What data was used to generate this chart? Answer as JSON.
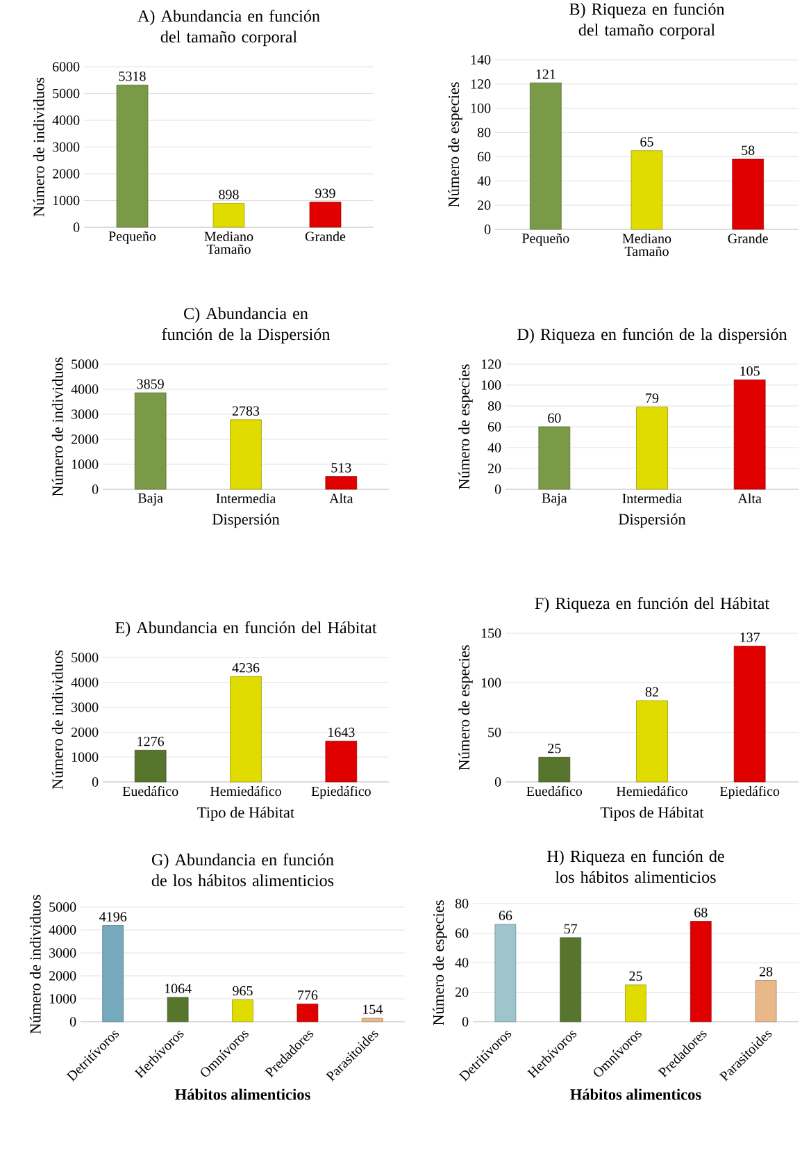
{
  "chart_data": [
    {
      "type": "bar",
      "title": "A) Abundancia en función del tamaño corporal",
      "ylabel": "Número de individuos",
      "categories": [
        "Pequeño",
        "Mediano Tamaño",
        "Grande"
      ],
      "values": [
        5318,
        898,
        939
      ],
      "colors": [
        "#7a9a48",
        "#e0dc00",
        "#e00000"
      ],
      "ylim": [
        0,
        6000
      ],
      "yticks": [
        0,
        1000,
        2000,
        3000,
        4000,
        5000,
        6000
      ],
      "grid": "y",
      "data_labels": true
    },
    {
      "type": "bar",
      "title": "B) Riqueza en función del tamaño corporal",
      "ylabel": "Número de especies",
      "categories": [
        "Pequeño",
        "Mediano Tamaño",
        "Grande"
      ],
      "values": [
        121,
        65,
        58
      ],
      "colors": [
        "#7a9a48",
        "#e0dc00",
        "#e00000"
      ],
      "ylim": [
        0,
        140
      ],
      "yticks": [
        0,
        20,
        40,
        60,
        80,
        100,
        120,
        140
      ],
      "grid": "y",
      "data_labels": true
    },
    {
      "type": "bar",
      "title": "C) Abundancia en función de la Dispersión",
      "ylabel": "Número de individuos",
      "xlabel": "Dispersión",
      "categories": [
        "Baja",
        "Intermedia",
        "Alta"
      ],
      "values": [
        3859,
        2783,
        513
      ],
      "colors": [
        "#7a9a48",
        "#e0dc00",
        "#e00000"
      ],
      "ylim": [
        0,
        5000
      ],
      "yticks": [
        0,
        1000,
        2000,
        3000,
        4000,
        5000
      ],
      "grid": "y",
      "data_labels": true
    },
    {
      "type": "bar",
      "title": "D) Riqueza en función de la dispersión",
      "ylabel": "Número de especies",
      "xlabel": "Dispersión",
      "categories": [
        "Baja",
        "Intermedia",
        "Alta"
      ],
      "values": [
        60,
        79,
        105
      ],
      "colors": [
        "#7a9a48",
        "#e0dc00",
        "#e00000"
      ],
      "ylim": [
        0,
        120
      ],
      "yticks": [
        0,
        20,
        40,
        60,
        80,
        100,
        120
      ],
      "grid": "y",
      "data_labels": true
    },
    {
      "type": "bar",
      "title": "E) Abundancia en función del Hábitat",
      "ylabel": "Número de individuos",
      "xlabel": "Tipo de Hábitat",
      "categories": [
        "Euedáfico",
        "Hemiedáfico",
        "Epiedáfico"
      ],
      "values": [
        1276,
        4236,
        1643
      ],
      "colors": [
        "#58752e",
        "#e0dc00",
        "#e00000"
      ],
      "ylim": [
        0,
        5000
      ],
      "yticks": [
        0,
        1000,
        2000,
        3000,
        4000,
        5000
      ],
      "grid": "y",
      "data_labels": true
    },
    {
      "type": "bar",
      "title": "F) Riqueza en función del Hábitat",
      "ylabel": "Número de especies",
      "xlabel": "Tipos de Hábitat",
      "categories": [
        "Euedáfico",
        "Hemiedáfico",
        "Epiedáfico"
      ],
      "values": [
        25,
        82,
        137
      ],
      "colors": [
        "#58752e",
        "#e0dc00",
        "#e00000"
      ],
      "ylim": [
        0,
        150
      ],
      "yticks": [
        0,
        50,
        100,
        150
      ],
      "grid": "y",
      "data_labels": true
    },
    {
      "type": "bar",
      "title": "G) Abundancia en función de los hábitos alimenticios",
      "ylabel": "Número de individuos",
      "xlabel": "**Hábitos alimenticios**",
      "categories": [
        "Detritívoros",
        "Herbívoros",
        "Omnívoros",
        "Predadores",
        "Parasitoides"
      ],
      "values": [
        4196,
        1064,
        965,
        776,
        154
      ],
      "colors": [
        "#74aabb",
        "#58752e",
        "#e0dc00",
        "#e00000",
        "#e8b888"
      ],
      "ylim": [
        0,
        5000
      ],
      "yticks": [
        0,
        1000,
        2000,
        3000,
        4000,
        5000
      ],
      "grid": "y",
      "data_labels": true
    },
    {
      "type": "bar",
      "title": "H) Riqueza en función de los hábitos alimenticios",
      "ylabel": "Número de especies",
      "xlabel": "**Hábitos alimenticos**",
      "categories": [
        "Detritívoros",
        "Herbívoros",
        "Omnívoros",
        "Predadores",
        "Parasitoides"
      ],
      "values": [
        66,
        57,
        25,
        68,
        28
      ],
      "colors": [
        "#9ec4cc",
        "#58752e",
        "#e0dc00",
        "#e00000",
        "#e8b888"
      ],
      "ylim": [
        0,
        80
      ],
      "yticks": [
        0,
        20,
        40,
        60,
        80
      ],
      "grid": "y",
      "data_labels": true
    }
  ]
}
